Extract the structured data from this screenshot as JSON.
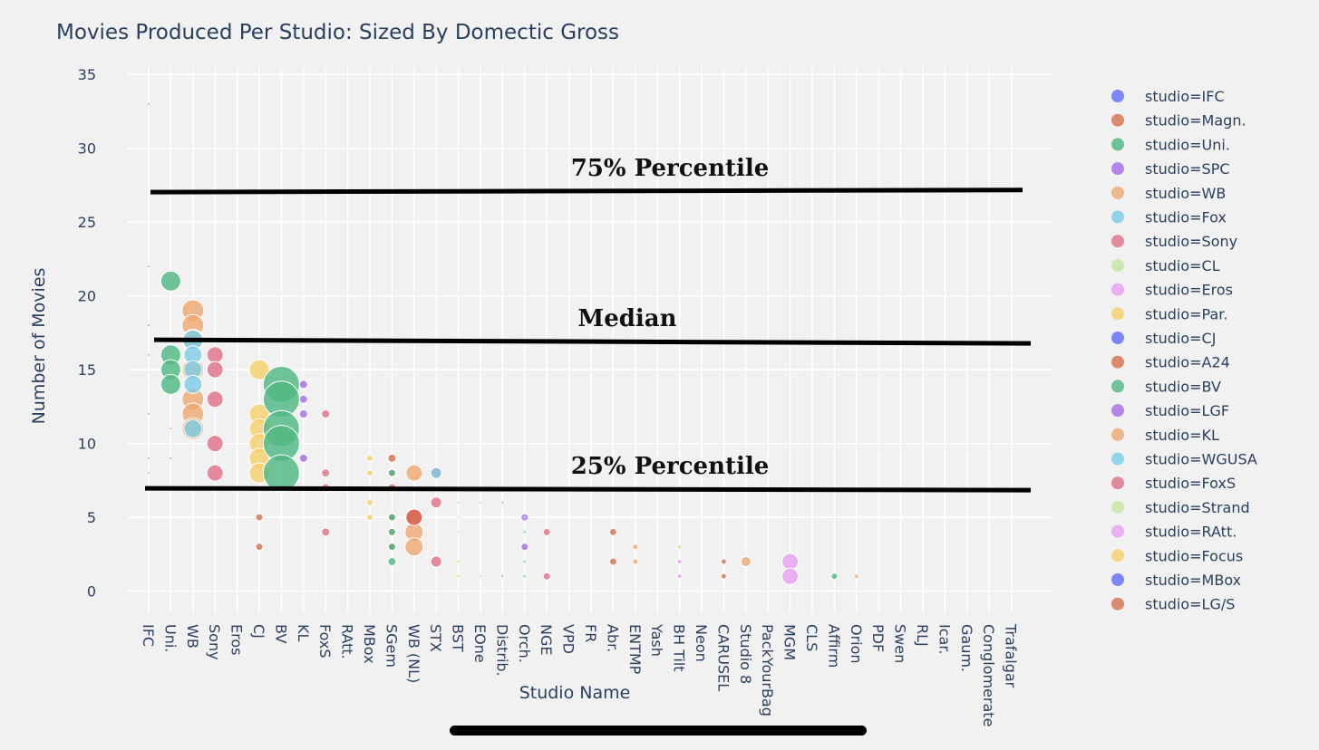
{
  "chart_data": {
    "type": "scatter",
    "title": "Movies Produced Per Studio: Sized By Domectic Gross",
    "xlabel": "Studio Name",
    "ylabel": "Number of Movies",
    "ylim": [
      -1.5,
      35.5
    ],
    "yticks": [
      0,
      5,
      10,
      15,
      20,
      25,
      30,
      35
    ],
    "grid": true,
    "legend_position": "right",
    "categories": [
      "IFC",
      "Uni.",
      "WB",
      "Sony",
      "Eros",
      "CJ",
      "BV",
      "KL",
      "FoxS",
      "RAtt.",
      "MBox",
      "SGem",
      "WB (NL)",
      "STX",
      "BST",
      "EOne",
      "Distrib.",
      "Orch.",
      "NGE",
      "VPD",
      "FR",
      "Abr.",
      "ENTMP",
      "Yash",
      "BH Tilt",
      "Neon",
      "CARUSEL",
      "Studio 8",
      "PackYourBag",
      "MGM",
      "CLS",
      "Affirm",
      "Orion",
      "PDF",
      "Swen",
      "RLJ",
      "Icar.",
      "Gaum.",
      "Conglomerate",
      "Trafalgar"
    ],
    "series": [
      {
        "name": "studio=IFC",
        "color": "#636efa",
        "points": [
          {
            "x": "IFC",
            "y": 33,
            "size": 1
          },
          {
            "x": "IFC",
            "y": 22,
            "size": 1
          },
          {
            "x": "IFC",
            "y": 18,
            "size": 1
          },
          {
            "x": "IFC",
            "y": 9,
            "size": 1
          }
        ]
      },
      {
        "name": "studio=Magn.",
        "color": "#d4734f",
        "points": [
          {
            "x": "IFC",
            "y": 16,
            "size": 1
          },
          {
            "x": "IFC",
            "y": 12,
            "size": 1
          },
          {
            "x": "IFC",
            "y": 8,
            "size": 1
          }
        ]
      },
      {
        "name": "studio=Uni.",
        "color": "#4fb882",
        "points": [
          {
            "x": "Uni.",
            "y": 21,
            "size": 22
          },
          {
            "x": "Uni.",
            "y": 16,
            "size": 22
          },
          {
            "x": "Uni.",
            "y": 15,
            "size": 22
          },
          {
            "x": "Uni.",
            "y": 14,
            "size": 22
          }
        ]
      },
      {
        "name": "studio=SPC",
        "color": "#a66be3",
        "points": [
          {
            "x": "Uni.",
            "y": 11,
            "size": 2
          },
          {
            "x": "Uni.",
            "y": 9,
            "size": 2
          }
        ]
      },
      {
        "name": "studio=WB",
        "color": "#eea872",
        "points": [
          {
            "x": "WB",
            "y": 19,
            "size": 24
          },
          {
            "x": "WB",
            "y": 18,
            "size": 24
          },
          {
            "x": "WB",
            "y": 17,
            "size": 24
          },
          {
            "x": "WB",
            "y": 15,
            "size": 24
          },
          {
            "x": "WB",
            "y": 13,
            "size": 24
          },
          {
            "x": "WB",
            "y": 12,
            "size": 24
          },
          {
            "x": "WB",
            "y": 11,
            "size": 24
          }
        ]
      },
      {
        "name": "studio=Fox",
        "color": "#7ecde8",
        "points": [
          {
            "x": "WB",
            "y": 17,
            "size": 22
          },
          {
            "x": "WB",
            "y": 16,
            "size": 20
          },
          {
            "x": "WB",
            "y": 15,
            "size": 20
          },
          {
            "x": "WB",
            "y": 14,
            "size": 20
          },
          {
            "x": "WB",
            "y": 11,
            "size": 20
          }
        ]
      },
      {
        "name": "studio=Sony",
        "color": "#e07089",
        "points": [
          {
            "x": "Sony",
            "y": 16,
            "size": 18
          },
          {
            "x": "Sony",
            "y": 15,
            "size": 18
          },
          {
            "x": "Sony",
            "y": 13,
            "size": 18
          },
          {
            "x": "Sony",
            "y": 10,
            "size": 18
          },
          {
            "x": "Sony",
            "y": 8,
            "size": 18
          }
        ]
      },
      {
        "name": "studio=CL",
        "color": "#c6e6a0",
        "points": []
      },
      {
        "name": "studio=Eros",
        "color": "#e8a0f2",
        "points": []
      },
      {
        "name": "studio=Par.",
        "color": "#f5cf6c",
        "points": [
          {
            "x": "CJ",
            "y": 15,
            "size": 22
          },
          {
            "x": "CJ",
            "y": 12,
            "size": 22
          },
          {
            "x": "CJ",
            "y": 11,
            "size": 22
          },
          {
            "x": "CJ",
            "y": 10,
            "size": 22
          },
          {
            "x": "CJ",
            "y": 9,
            "size": 22
          },
          {
            "x": "CJ",
            "y": 8,
            "size": 22
          }
        ]
      },
      {
        "name": "studio=CJ",
        "color": "#636efa",
        "points": []
      },
      {
        "name": "studio=A24",
        "color": "#d4734f",
        "points": [
          {
            "x": "CJ",
            "y": 5,
            "size": 8
          },
          {
            "x": "CJ",
            "y": 3,
            "size": 8
          }
        ]
      },
      {
        "name": "studio=BV",
        "color": "#4fb882",
        "points": [
          {
            "x": "BV",
            "y": 14,
            "size": 40
          },
          {
            "x": "BV",
            "y": 13,
            "size": 40
          },
          {
            "x": "BV",
            "y": 11,
            "size": 40
          },
          {
            "x": "BV",
            "y": 10,
            "size": 40
          },
          {
            "x": "BV",
            "y": 8,
            "size": 40
          }
        ]
      },
      {
        "name": "studio=LGF",
        "color": "#a66be3",
        "points": [
          {
            "x": "KL",
            "y": 14,
            "size": 9
          },
          {
            "x": "KL",
            "y": 13,
            "size": 9
          },
          {
            "x": "KL",
            "y": 12,
            "size": 9
          },
          {
            "x": "KL",
            "y": 9,
            "size": 9
          }
        ]
      },
      {
        "name": "studio=KL",
        "color": "#eea872",
        "points": []
      },
      {
        "name": "studio=WGUSA",
        "color": "#7ecde8",
        "points": []
      },
      {
        "name": "studio=FoxS",
        "color": "#e07089",
        "points": [
          {
            "x": "FoxS",
            "y": 12,
            "size": 9
          },
          {
            "x": "FoxS",
            "y": 8,
            "size": 9
          },
          {
            "x": "FoxS",
            "y": 7,
            "size": 9
          },
          {
            "x": "FoxS",
            "y": 4,
            "size": 9
          },
          {
            "x": "STX",
            "y": 8,
            "size": 12
          },
          {
            "x": "STX",
            "y": 6,
            "size": 12
          },
          {
            "x": "STX",
            "y": 2,
            "size": 12
          },
          {
            "x": "NGE",
            "y": 4,
            "size": 8
          },
          {
            "x": "NGE",
            "y": 1,
            "size": 8
          }
        ]
      },
      {
        "name": "studio=Strand",
        "color": "#c6e6a0",
        "points": [
          {
            "x": "BH Tilt",
            "y": 3,
            "size": 5
          }
        ]
      },
      {
        "name": "studio=RAtt.",
        "color": "#e8a0f2",
        "points": [
          {
            "x": "MGM",
            "y": 2,
            "size": 18
          },
          {
            "x": "MGM",
            "y": 1,
            "size": 18
          },
          {
            "x": "BH Tilt",
            "y": 2,
            "size": 5
          },
          {
            "x": "BH Tilt",
            "y": 1,
            "size": 5
          }
        ]
      },
      {
        "name": "studio=Focus",
        "color": "#f5cf6c",
        "points": [
          {
            "x": "MBox",
            "y": 9,
            "size": 7
          },
          {
            "x": "MBox",
            "y": 8,
            "size": 7
          },
          {
            "x": "MBox",
            "y": 6,
            "size": 7
          },
          {
            "x": "MBox",
            "y": 5,
            "size": 7
          },
          {
            "x": "BST",
            "y": 2,
            "size": 3
          },
          {
            "x": "BST",
            "y": 1,
            "size": 3
          }
        ]
      },
      {
        "name": "studio=MBox",
        "color": "#636efa",
        "points": []
      },
      {
        "name": "studio=LG/S",
        "color": "#d4734f",
        "points": [
          {
            "x": "SGem",
            "y": 9,
            "size": 9
          },
          {
            "x": "SGem",
            "y": 8,
            "size": 9
          },
          {
            "x": "SGem",
            "y": 7,
            "size": 9
          },
          {
            "x": "SGem",
            "y": 5,
            "size": 9
          },
          {
            "x": "SGem",
            "y": 4,
            "size": 9
          },
          {
            "x": "SGem",
            "y": 3,
            "size": 9
          },
          {
            "x": "Abr.",
            "y": 4,
            "size": 8
          },
          {
            "x": "Abr.",
            "y": 2,
            "size": 8
          },
          {
            "x": "CARUSEL",
            "y": 2,
            "size": 6
          },
          {
            "x": "CARUSEL",
            "y": 1,
            "size": 6
          }
        ]
      },
      {
        "name": "",
        "color": "#4fb882",
        "points": [
          {
            "x": "SGem",
            "y": 8,
            "size": 8
          },
          {
            "x": "SGem",
            "y": 5,
            "size": 8
          },
          {
            "x": "SGem",
            "y": 4,
            "size": 8
          },
          {
            "x": "SGem",
            "y": 3,
            "size": 8
          },
          {
            "x": "SGem",
            "y": 2,
            "size": 9
          },
          {
            "x": "Affirm",
            "y": 1,
            "size": 7
          }
        ]
      },
      {
        "name": "",
        "color": "#eea872",
        "points": [
          {
            "x": "WB (NL)",
            "y": 8,
            "size": 18
          },
          {
            "x": "WB (NL)",
            "y": 5,
            "size": 20
          },
          {
            "x": "WB (NL)",
            "y": 4,
            "size": 20
          },
          {
            "x": "WB (NL)",
            "y": 3,
            "size": 20
          },
          {
            "x": "ENTMP",
            "y": 3,
            "size": 6
          },
          {
            "x": "ENTMP",
            "y": 2,
            "size": 6
          },
          {
            "x": "Studio 8",
            "y": 2,
            "size": 11
          },
          {
            "x": "Orion",
            "y": 1,
            "size": 4
          }
        ]
      },
      {
        "name": "",
        "color": "#d35c4a",
        "points": [
          {
            "x": "WB (NL)",
            "y": 5,
            "size": 18
          }
        ]
      },
      {
        "name": "",
        "color": "#a66be3",
        "points": [
          {
            "x": "Orch.",
            "y": 5,
            "size": 8
          },
          {
            "x": "Orch.",
            "y": 3,
            "size": 8
          }
        ]
      },
      {
        "name": "",
        "color": "#7ecde8",
        "points": [
          {
            "x": "STX",
            "y": 8,
            "size": 12
          },
          {
            "x": "Orch.",
            "y": 4,
            "size": 3
          },
          {
            "x": "Orch.",
            "y": 5,
            "size": 3
          },
          {
            "x": "Orch.",
            "y": 2,
            "size": 3
          },
          {
            "x": "Orch.",
            "y": 1,
            "size": 3
          }
        ]
      },
      {
        "name": "",
        "color": "#e8a0f2",
        "points": [
          {
            "x": "BST",
            "y": 6,
            "size": 2
          },
          {
            "x": "BST",
            "y": 5,
            "size": 2
          },
          {
            "x": "BST",
            "y": 4,
            "size": 2
          }
        ]
      },
      {
        "name": "",
        "color": "#d4734f",
        "points": [
          {
            "x": "Distrib.",
            "y": 6,
            "size": 2
          },
          {
            "x": "Distrib.",
            "y": 1,
            "size": 2
          },
          {
            "x": "EOne",
            "y": 6,
            "size": 2
          },
          {
            "x": "EOne",
            "y": 1,
            "size": 2
          }
        ]
      },
      {
        "name": "",
        "color": "#f5cf6c",
        "points": [
          {
            "x": "EOne",
            "y": 6,
            "size": 2
          },
          {
            "x": "EOne",
            "y": 1,
            "size": 2
          }
        ]
      }
    ],
    "reference_lines": [
      {
        "label": "75% Percentile",
        "y": 27.1
      },
      {
        "label": "Median",
        "y": 16.9
      },
      {
        "label": "25% Percentile",
        "y": 6.9
      }
    ]
  }
}
